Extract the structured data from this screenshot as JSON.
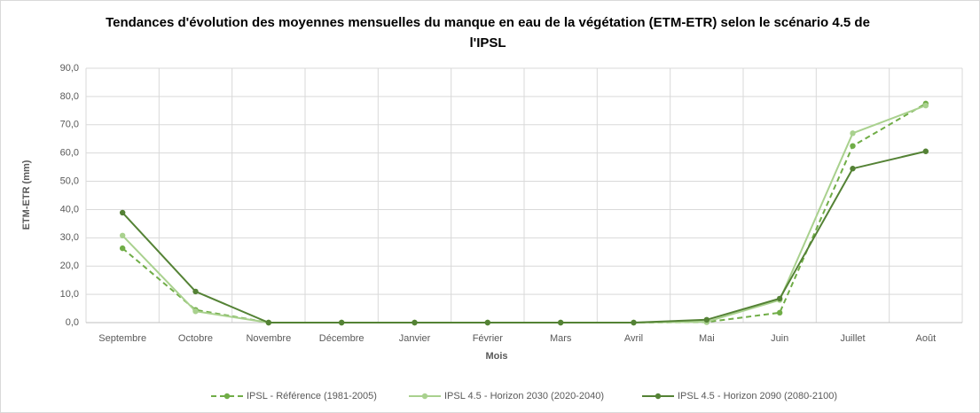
{
  "chart_data": {
    "type": "line",
    "title": "Tendances d'évolution des moyennes mensuelles du manque en eau de la végétation (ETM-ETR) selon le scénario 4.5 de l'IPSL",
    "x_label": "Mois",
    "y_label": "ETM-ETR (mm)",
    "categories": [
      "Septembre",
      "Octobre",
      "Novembre",
      "Décembre",
      "Janvier",
      "Février",
      "Mars",
      "Avril",
      "Mai",
      "Juin",
      "Juillet",
      "Août"
    ],
    "series": [
      {
        "name": "IPSL - Référence (1981-2005)",
        "color": "#70ad47",
        "dashed": true,
        "values": [
          26.3,
          4.5,
          0,
          0,
          0,
          0,
          0,
          0,
          0.2,
          3.5,
          62.5,
          77.5
        ]
      },
      {
        "name": "IPSL 4.5 - Horizon 2030 (2020-2040)",
        "color": "#a9d18e",
        "dashed": false,
        "values": [
          30.8,
          4.0,
          0,
          0,
          0,
          0,
          0,
          0,
          0.3,
          8.0,
          67.0,
          76.8
        ]
      },
      {
        "name": "IPSL 4.5 - Horizon 2090 (2080-2100)",
        "color": "#548235",
        "dashed": false,
        "values": [
          38.9,
          11.0,
          0,
          0,
          0,
          0,
          0,
          0,
          1.0,
          8.5,
          54.5,
          60.6
        ]
      }
    ],
    "ylim": [
      0,
      90
    ],
    "yticks": [
      {
        "value": 0,
        "label": "0,0"
      },
      {
        "value": 10,
        "label": "10,0"
      },
      {
        "value": 20,
        "label": "20,0"
      },
      {
        "value": 30,
        "label": "30,0"
      },
      {
        "value": 40,
        "label": "40,0"
      },
      {
        "value": 50,
        "label": "50,0"
      },
      {
        "value": 60,
        "label": "60,0"
      },
      {
        "value": 70,
        "label": "70,0"
      },
      {
        "value": 80,
        "label": "80,0"
      },
      {
        "value": 90,
        "label": "90,0"
      }
    ],
    "grid": true,
    "legend": "bottom"
  }
}
